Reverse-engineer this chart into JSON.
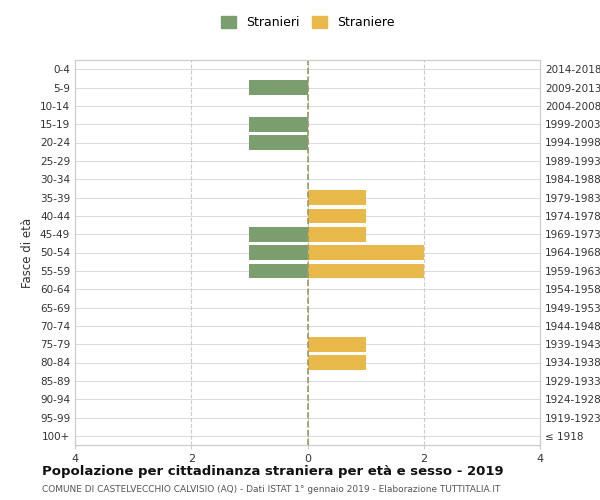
{
  "age_groups": [
    "100+",
    "95-99",
    "90-94",
    "85-89",
    "80-84",
    "75-79",
    "70-74",
    "65-69",
    "60-64",
    "55-59",
    "50-54",
    "45-49",
    "40-44",
    "35-39",
    "30-34",
    "25-29",
    "20-24",
    "15-19",
    "10-14",
    "5-9",
    "0-4"
  ],
  "birth_years": [
    "≤ 1918",
    "1919-1923",
    "1924-1928",
    "1929-1933",
    "1934-1938",
    "1939-1943",
    "1944-1948",
    "1949-1953",
    "1954-1958",
    "1959-1963",
    "1964-1968",
    "1969-1973",
    "1974-1978",
    "1979-1983",
    "1984-1988",
    "1989-1993",
    "1994-1998",
    "1999-2003",
    "2004-2008",
    "2009-2013",
    "2014-2018"
  ],
  "males": [
    0,
    0,
    0,
    0,
    0,
    0,
    0,
    0,
    0,
    1,
    1,
    1,
    0,
    0,
    0,
    0,
    1,
    1,
    0,
    1,
    0
  ],
  "females": [
    0,
    0,
    0,
    0,
    1,
    1,
    0,
    0,
    0,
    2,
    2,
    1,
    1,
    1,
    0,
    0,
    0,
    0,
    0,
    0,
    0
  ],
  "male_color": "#7a9e6e",
  "female_color": "#e8b84b",
  "bg_color": "#ffffff",
  "grid_color": "#cccccc",
  "spine_color": "#cccccc",
  "title": "Popolazione per cittadinanza straniera per età e sesso - 2019",
  "subtitle": "COMUNE DI CASTELVECCHIO CALVISIO (AQ) - Dati ISTAT 1° gennaio 2019 - Elaborazione TUTTITALIA.IT",
  "ylabel_left": "Fasce di età",
  "xlabel": "",
  "legend_stranieri": "Stranieri",
  "legend_straniere": "Straniere",
  "xlim": 4,
  "bar_height": 0.8
}
